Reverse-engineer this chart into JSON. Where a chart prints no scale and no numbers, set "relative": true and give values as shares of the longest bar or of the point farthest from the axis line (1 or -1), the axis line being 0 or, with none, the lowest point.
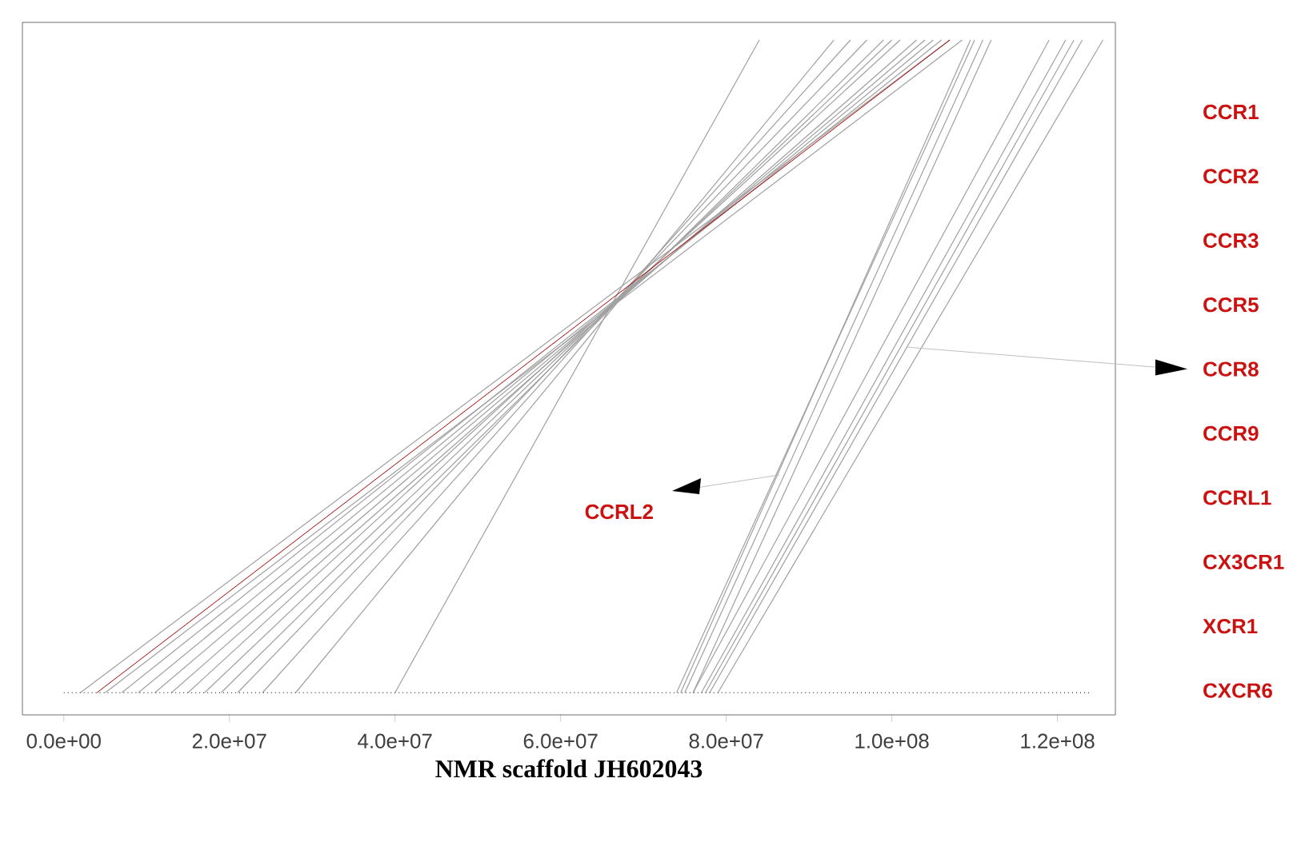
{
  "chart_data": {
    "type": "line",
    "relative": true,
    "xlabel": "NMR scaffold JH602043",
    "xlim": [
      -5000000,
      127000000
    ],
    "xticks": [
      {
        "value": 0,
        "label": "0.0e+00"
      },
      {
        "value": 20000000,
        "label": "2.0e+07"
      },
      {
        "value": 40000000,
        "label": "4.0e+07"
      },
      {
        "value": 60000000,
        "label": "6.0e+07"
      },
      {
        "value": 80000000,
        "label": "8.0e+07"
      },
      {
        "value": 100000000,
        "label": "1.0e+08"
      },
      {
        "value": 120000000,
        "label": "1.2e+08"
      }
    ],
    "marker": "none",
    "series": [
      {
        "color": "#a0a0a0",
        "x": [
          2000000,
          107000000
        ],
        "values": [
          0,
          1
        ]
      },
      {
        "color": "#a0a0a0",
        "x": [
          5000000,
          108500000
        ],
        "values": [
          0,
          1
        ]
      },
      {
        "color": "#a0a0a0",
        "x": [
          7000000,
          106000000
        ],
        "values": [
          0,
          1
        ]
      },
      {
        "color": "#a0a0a0",
        "x": [
          9000000,
          105000000
        ],
        "values": [
          0,
          1
        ]
      },
      {
        "color": "#a0a0a0",
        "x": [
          11000000,
          104000000
        ],
        "values": [
          0,
          1
        ]
      },
      {
        "color": "#a0a0a0",
        "x": [
          13000000,
          103000000
        ],
        "values": [
          0,
          1
        ]
      },
      {
        "color": "#a0a0a0",
        "x": [
          15000000,
          101000000
        ],
        "values": [
          0,
          1
        ]
      },
      {
        "color": "#a0a0a0",
        "x": [
          17000000,
          100000000
        ],
        "values": [
          0,
          1
        ]
      },
      {
        "color": "#a0a0a0",
        "x": [
          19000000,
          99000000
        ],
        "values": [
          0,
          1
        ]
      },
      {
        "color": "#a0a0a0",
        "x": [
          21000000,
          97000000
        ],
        "values": [
          0,
          1
        ]
      },
      {
        "color": "#a0a0a0",
        "x": [
          24000000,
          95000000
        ],
        "values": [
          0,
          1
        ]
      },
      {
        "color": "#a0a0a0",
        "x": [
          28000000,
          93000000
        ],
        "values": [
          0,
          1
        ]
      },
      {
        "color": "#a0a0a0",
        "x": [
          40000000,
          84000000
        ],
        "values": [
          0,
          1
        ]
      },
      {
        "color": "#a0a0a0",
        "x": [
          74000000,
          110000000
        ],
        "values": [
          0,
          1
        ]
      },
      {
        "color": "#a0a0a0",
        "x": [
          74500000,
          109500000
        ],
        "values": [
          0,
          1
        ]
      },
      {
        "color": "#a0a0a0",
        "x": [
          75000000,
          111000000
        ],
        "values": [
          0,
          1
        ]
      },
      {
        "color": "#a0a0a0",
        "x": [
          76000000,
          112000000
        ],
        "values": [
          0,
          1
        ]
      },
      {
        "color": "#a0a0a0",
        "x": [
          76000000,
          119000000
        ],
        "values": [
          0,
          1
        ]
      },
      {
        "color": "#a0a0a0",
        "x": [
          77000000,
          121000000
        ],
        "values": [
          0,
          1
        ]
      },
      {
        "color": "#a0a0a0",
        "x": [
          77500000,
          122000000
        ],
        "values": [
          0,
          1
        ]
      },
      {
        "color": "#a0a0a0",
        "x": [
          78000000,
          123000000
        ],
        "values": [
          0,
          1
        ]
      },
      {
        "color": "#a0a0a0",
        "x": [
          79000000,
          125500000
        ],
        "values": [
          0,
          1
        ]
      },
      {
        "color": "#aa0000",
        "x": [
          4000000,
          107000000
        ],
        "values": [
          0,
          1
        ]
      },
      {
        "color": "#000000",
        "line_style": "dotted",
        "x": [
          0,
          124000000
        ],
        "values": [
          0,
          0
        ]
      }
    ],
    "annotations": [
      "CCR1",
      "CCR2",
      "CCR3",
      "CCR5",
      "CCR8",
      "CCR9",
      "CCRL1",
      "CX3CR1",
      "XCR1",
      "CXCR6",
      "CCRL2"
    ]
  }
}
